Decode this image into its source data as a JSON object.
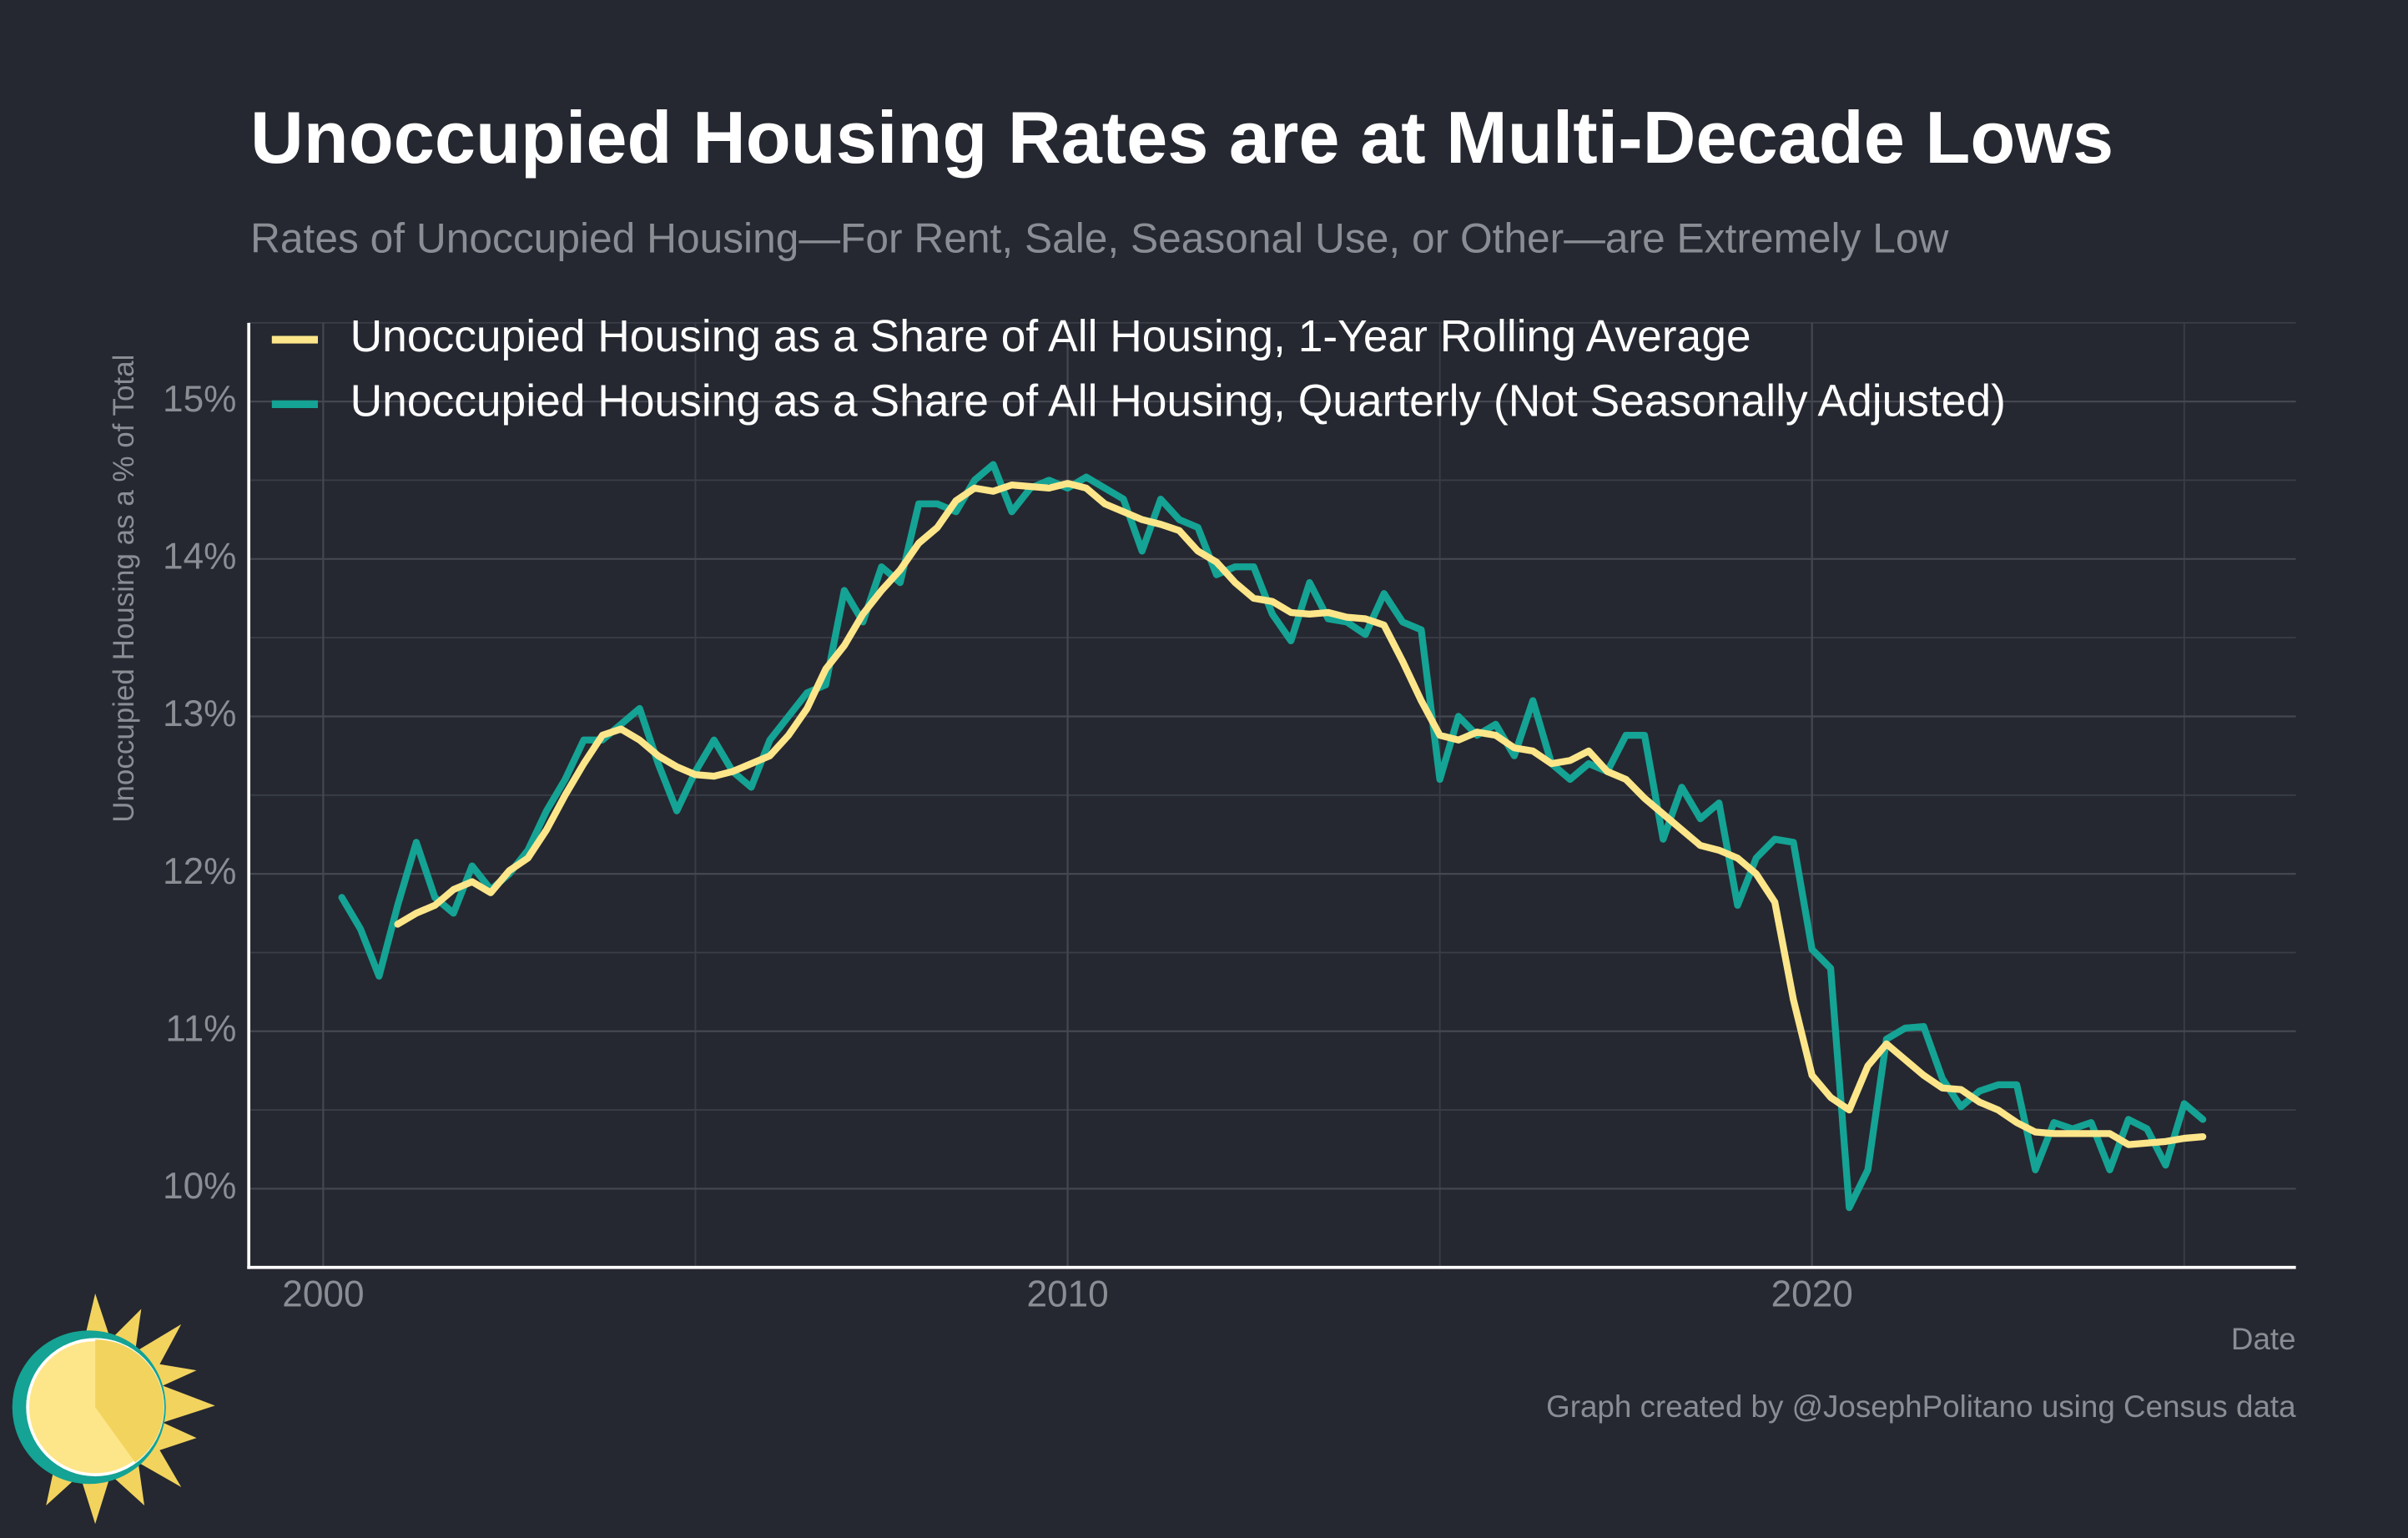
{
  "chart_data": {
    "type": "line",
    "title": "Unoccupied Housing Rates are at Multi-Decade Lows",
    "subtitle": "Rates of Unoccupied Housing—For Rent, Sale, Seasonal Use, or Other—are Extremely Low",
    "ylabel": "Unoccupied Housing as a % of Total",
    "xlabel": "Date",
    "caption": "Graph created by @JosephPolitano using Census data",
    "xlim": [
      1999,
      2026.5
    ],
    "ylim": [
      9.5,
      15.5
    ],
    "xticks": [
      2000,
      2010,
      2020
    ],
    "xminorticks": [
      2005,
      2015,
      2025
    ],
    "yticks": [
      {
        "value": 10,
        "label": "10%"
      },
      {
        "value": 11,
        "label": "11%"
      },
      {
        "value": 12,
        "label": "12%"
      },
      {
        "value": 13,
        "label": "13%"
      },
      {
        "value": 14,
        "label": "14%"
      },
      {
        "value": 15,
        "label": "15%"
      }
    ],
    "yminorticks": [
      10.5,
      11.5,
      12.5,
      13.5,
      14.5,
      15.5
    ],
    "grid": true,
    "legend": "upper left",
    "series": [
      {
        "name": "Unoccupied Housing as a Share of All Housing, 1-Year Rolling Average",
        "color": "#fde68a",
        "x": [
          2001,
          2001.25,
          2001.5,
          2001.75,
          2002,
          2002.25,
          2002.5,
          2002.75,
          2003,
          2003.25,
          2003.5,
          2003.75,
          2004,
          2004.25,
          2004.5,
          2004.75,
          2005,
          2005.25,
          2005.5,
          2005.75,
          2006,
          2006.25,
          2006.5,
          2006.75,
          2007,
          2007.25,
          2007.5,
          2007.75,
          2008,
          2008.25,
          2008.5,
          2008.75,
          2009,
          2009.25,
          2009.5,
          2009.75,
          2010,
          2010.25,
          2010.5,
          2010.75,
          2011,
          2011.25,
          2011.5,
          2011.75,
          2012,
          2012.25,
          2012.5,
          2012.75,
          2013,
          2013.25,
          2013.5,
          2013.75,
          2014,
          2014.25,
          2014.5,
          2014.75,
          2015,
          2015.25,
          2015.5,
          2015.75,
          2016,
          2016.25,
          2016.5,
          2016.75,
          2017,
          2017.25,
          2017.5,
          2017.75,
          2018,
          2018.25,
          2018.5,
          2018.75,
          2019,
          2019.25,
          2019.5,
          2019.75,
          2020,
          2020.25,
          2020.5,
          2020.75,
          2021,
          2021.25,
          2021.5,
          2021.75,
          2022,
          2022.25,
          2022.5,
          2022.75,
          2023,
          2023.25,
          2023.5,
          2023.75,
          2024,
          2024.25,
          2024.5,
          2024.75,
          2025,
          2025.25
        ],
        "values": [
          11.68,
          11.75,
          11.8,
          11.9,
          11.95,
          11.88,
          12.02,
          12.1,
          12.28,
          12.5,
          12.7,
          12.88,
          12.92,
          12.85,
          12.75,
          12.68,
          12.63,
          12.62,
          12.65,
          12.7,
          12.75,
          12.88,
          13.05,
          13.3,
          13.45,
          13.65,
          13.8,
          13.93,
          14.1,
          14.2,
          14.37,
          14.45,
          14.43,
          14.47,
          14.46,
          14.45,
          14.48,
          14.45,
          14.35,
          14.3,
          14.25,
          14.22,
          14.18,
          14.05,
          13.98,
          13.85,
          13.75,
          13.73,
          13.66,
          13.65,
          13.66,
          13.63,
          13.62,
          13.58,
          13.35,
          13.1,
          12.88,
          12.85,
          12.9,
          12.88,
          12.8,
          12.78,
          12.7,
          12.72,
          12.78,
          12.65,
          12.6,
          12.48,
          12.38,
          12.28,
          12.18,
          12.15,
          12.1,
          12.0,
          11.82,
          11.2,
          10.72,
          10.58,
          10.5,
          10.78,
          10.92,
          10.82,
          10.72,
          10.64,
          10.63,
          10.55,
          10.5,
          10.42,
          10.36,
          10.35,
          10.35,
          10.35,
          10.35,
          10.28,
          10.29,
          10.3,
          10.32,
          10.33
        ]
      },
      {
        "name": "Unoccupied Housing as a Share of All Housing, Quarterly (Not Seasonally Adjusted)",
        "color": "#14a394",
        "x": [
          2000.25,
          2000.5,
          2000.75,
          2001,
          2001.25,
          2001.5,
          2001.75,
          2002,
          2002.25,
          2002.5,
          2002.75,
          2003,
          2003.25,
          2003.5,
          2003.75,
          2004,
          2004.25,
          2004.5,
          2004.75,
          2005,
          2005.25,
          2005.5,
          2005.75,
          2006,
          2006.25,
          2006.5,
          2006.75,
          2007,
          2007.25,
          2007.5,
          2007.75,
          2008,
          2008.25,
          2008.5,
          2008.75,
          2009,
          2009.25,
          2009.5,
          2009.75,
          2010,
          2010.25,
          2010.5,
          2010.75,
          2011,
          2011.25,
          2011.5,
          2011.75,
          2012,
          2012.25,
          2012.5,
          2012.75,
          2013,
          2013.25,
          2013.5,
          2013.75,
          2014,
          2014.25,
          2014.5,
          2014.75,
          2015,
          2015.25,
          2015.5,
          2015.75,
          2016,
          2016.25,
          2016.5,
          2016.75,
          2017,
          2017.25,
          2017.5,
          2017.75,
          2018,
          2018.25,
          2018.5,
          2018.75,
          2019,
          2019.25,
          2019.5,
          2019.75,
          2020,
          2020.25,
          2020.5,
          2020.75,
          2021,
          2021.25,
          2021.5,
          2021.75,
          2022,
          2022.25,
          2022.5,
          2022.75,
          2023,
          2023.25,
          2023.5,
          2023.75,
          2024,
          2024.25,
          2024.5,
          2024.75,
          2025,
          2025.25
        ],
        "values": [
          11.85,
          11.65,
          11.35,
          11.8,
          12.2,
          11.85,
          11.75,
          12.05,
          11.9,
          12.0,
          12.15,
          12.4,
          12.6,
          12.85,
          12.85,
          12.95,
          13.05,
          12.7,
          12.4,
          12.65,
          12.85,
          12.65,
          12.55,
          12.85,
          13.0,
          13.15,
          13.2,
          13.8,
          13.6,
          13.95,
          13.85,
          14.35,
          14.35,
          14.3,
          14.5,
          14.6,
          14.3,
          14.45,
          14.5,
          14.45,
          14.52,
          14.45,
          14.38,
          14.05,
          14.38,
          14.25,
          14.2,
          13.9,
          13.95,
          13.95,
          13.65,
          13.48,
          13.85,
          13.62,
          13.6,
          13.52,
          13.78,
          13.6,
          13.55,
          12.6,
          13.0,
          12.88,
          12.95,
          12.75,
          13.1,
          12.7,
          12.6,
          12.7,
          12.65,
          12.88,
          12.88,
          12.22,
          12.55,
          12.35,
          12.45,
          11.8,
          12.1,
          12.22,
          12.2,
          11.52,
          11.4,
          9.88,
          10.12,
          10.95,
          11.02,
          11.03,
          10.7,
          10.52,
          10.62,
          10.66,
          10.66,
          10.12,
          10.42,
          10.38,
          10.42,
          10.12,
          10.44,
          10.38,
          10.15,
          10.54,
          10.44
        ]
      }
    ]
  }
}
